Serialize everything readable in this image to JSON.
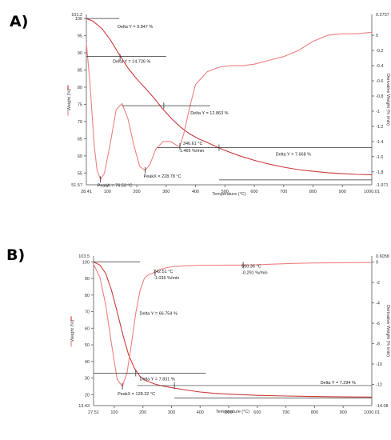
{
  "panels": [
    {
      "label": "A)"
    },
    {
      "label": "B)"
    }
  ],
  "chart_data": [
    {
      "type": "line",
      "panel": "A)",
      "xlabel": "Temperature (°C)",
      "ylabel_left": "Weight (%)",
      "ylabel_right": "Derivative Weight (% /min)",
      "xlim": [
        28.41,
        1000.01
      ],
      "x_ticks": [
        100,
        200,
        300,
        400,
        500,
        600,
        700,
        800,
        900
      ],
      "x_limit_labels": [
        "28.41",
        "1000.01"
      ],
      "ylim_left": [
        51.57,
        101.2
      ],
      "y_left_ticks": [
        55,
        60,
        65,
        70,
        75,
        80,
        85,
        90,
        95,
        100
      ],
      "y_left_limit_labels": [
        "51.57",
        "101.2"
      ],
      "ylim_right": [
        -1.971,
        0.2757
      ],
      "y_right_ticks": [
        0.0,
        -0.2,
        -0.4,
        -0.6,
        -0.8,
        -1.0,
        -1.2,
        -1.4,
        -1.6,
        -1.8
      ],
      "y_right_limit_labels": [
        "0.2757",
        "-1.971"
      ],
      "grid": false,
      "series": [
        {
          "axis": "left",
          "color": "#cc3b3b",
          "x": [
            28.41,
            50,
            80,
            110,
            140,
            170,
            200,
            230,
            260,
            290,
            320,
            350,
            380,
            410,
            440,
            470,
            500,
            550,
            600,
            650,
            700,
            750,
            800,
            850,
            900,
            950,
            1000
          ],
          "y": [
            100,
            99.3,
            97.2,
            93.8,
            89.6,
            85.6,
            82.4,
            79.6,
            76.7,
            73.5,
            70.7,
            68.3,
            66.4,
            65.0,
            63.9,
            62.7,
            61.6,
            60.0,
            58.7,
            57.6,
            56.7,
            56.0,
            55.5,
            55.1,
            54.8,
            54.6,
            54.5
          ]
        },
        {
          "axis": "right",
          "color": "#f08080",
          "x": [
            28.41,
            40,
            55,
            65,
            76.53,
            90,
            110,
            130,
            150,
            170,
            190,
            210,
            228.78,
            245,
            265,
            290,
            315,
            340,
            346.61,
            360,
            380,
            400,
            440,
            480,
            520,
            560,
            600,
            650,
            700,
            750,
            800,
            850,
            900,
            950,
            1000
          ],
          "y": [
            -0.1,
            -0.6,
            -1.45,
            -1.78,
            -1.9,
            -1.82,
            -1.42,
            -0.98,
            -0.9,
            -1.1,
            -1.45,
            -1.73,
            -1.78,
            -1.7,
            -1.5,
            -1.4,
            -1.4,
            -1.46,
            -1.465,
            -1.3,
            -0.95,
            -0.65,
            -0.48,
            -0.42,
            -0.4,
            -0.4,
            -0.38,
            -0.33,
            -0.28,
            -0.2,
            -0.08,
            0.0,
            0.02,
            0.02,
            0.04
          ]
        }
      ],
      "annotations": [
        {
          "text": "Delta Y = 9.847 %"
        },
        {
          "text": "Delta Y = 14.726 %"
        },
        {
          "text": "Delta Y = 12.863 %"
        },
        {
          "text": "Delta Y = 7.668 %"
        },
        {
          "text": "346.61 °C"
        },
        {
          "text": "-1.465 %/min"
        },
        {
          "text": "PeakX = 76.53 °C"
        },
        {
          "text": "PeakX = 228.78 °C"
        }
      ]
    },
    {
      "type": "line",
      "panel": "B)",
      "xlabel": "Temperature (°C)",
      "ylabel_left": "Weight (%)",
      "ylabel_right": "Derivative Weight (% /min)",
      "xlim": [
        27.51,
        1000.01
      ],
      "x_ticks": [
        100,
        200,
        300,
        400,
        500,
        600,
        700,
        800,
        900
      ],
      "x_limit_labels": [
        "27.51",
        "1000.01"
      ],
      "ylim_left": [
        13.43,
        103.5
      ],
      "y_left_ticks": [
        20,
        30,
        40,
        50,
        60,
        70,
        80,
        90,
        100
      ],
      "y_left_limit_labels": [
        "13.43",
        "103.5"
      ],
      "ylim_right": [
        -14.08,
        0.6058
      ],
      "y_right_ticks": [
        0,
        -2,
        -4,
        -6,
        -8,
        -10,
        -12
      ],
      "y_right_limit_labels": [
        "0.6058",
        "-14.08"
      ],
      "grid": false,
      "series": [
        {
          "axis": "left",
          "color": "#cc3b3b",
          "x": [
            27.51,
            50,
            70,
            90,
            110,
            130,
            150,
            170,
            190,
            210,
            240,
            270,
            300,
            350,
            400,
            450,
            500,
            600,
            700,
            800,
            900,
            1000
          ],
          "y": [
            100,
            98,
            93,
            83,
            70,
            56,
            44,
            36,
            31,
            28.5,
            26.5,
            25.2,
            24.2,
            22.8,
            21.6,
            20.8,
            20.3,
            19.6,
            19.2,
            18.9,
            18.7,
            18.6
          ]
        },
        {
          "axis": "right",
          "color": "#f08080",
          "x": [
            27.51,
            50,
            70,
            90,
            110,
            128.32,
            145,
            160,
            175,
            190,
            205,
            220,
            242.51,
            260,
            300,
            350,
            400,
            500,
            550.36,
            600,
            700,
            800,
            900,
            1000
          ],
          "y": [
            -0.2,
            -1.5,
            -4.2,
            -8.0,
            -11.5,
            -12.2,
            -10.8,
            -8.0,
            -5.0,
            -2.8,
            -1.6,
            -1.2,
            -1.036,
            -0.7,
            -0.45,
            -0.35,
            -0.3,
            -0.29,
            -0.291,
            -0.25,
            -0.15,
            -0.08,
            -0.05,
            -0.03
          ]
        }
      ],
      "annotations": [
        {
          "text": "242.51 °C"
        },
        {
          "text": "-1.036 %/min"
        },
        {
          "text": "550.36 °C"
        },
        {
          "text": "-0.291 %/min"
        },
        {
          "text": "Delta Y = 66.754 %"
        },
        {
          "text": "Delta Y = 7.831 %"
        },
        {
          "text": "Delta Y = 7.294 %"
        },
        {
          "text": "PeakX = 128.32 °C"
        }
      ]
    }
  ]
}
